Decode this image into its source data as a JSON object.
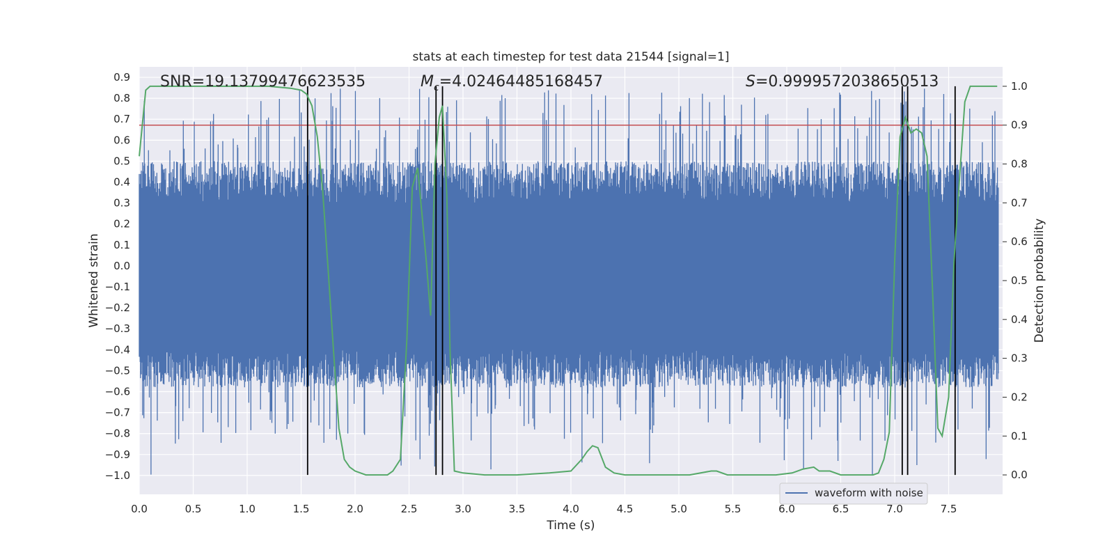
{
  "chart_data": {
    "type": "line",
    "title": "stats at each timestep for test data 21544 [signal=1]",
    "xlabel": "Time (s)",
    "ylabel_left": "Whitened strain",
    "ylabel_right": "Detection probability",
    "xlim": [
      0.0,
      8.0
    ],
    "ylim_left": [
      -1.09,
      0.95
    ],
    "ylim_right": [
      -0.05,
      1.05
    ],
    "x_ticks": [
      "0.0",
      "0.5",
      "1.0",
      "1.5",
      "2.0",
      "2.5",
      "3.0",
      "3.5",
      "4.0",
      "4.5",
      "5.0",
      "5.5",
      "6.0",
      "6.5",
      "7.0",
      "7.5"
    ],
    "y_left_ticks": [
      "0.9",
      "0.8",
      "0.7",
      "0.6",
      "0.5",
      "0.4",
      "0.3",
      "0.2",
      "0.1",
      "0.0",
      "−0.1",
      "−0.2",
      "−0.3",
      "−0.4",
      "−0.5",
      "−0.6",
      "−0.7",
      "−0.8",
      "−0.9",
      "−1.0"
    ],
    "y_right_ticks": [
      "1.0",
      "0.9",
      "0.8",
      "0.7",
      "0.6",
      "0.5",
      "0.4",
      "0.3",
      "0.2",
      "0.1",
      "0.0"
    ],
    "grid": true,
    "background": "#eaeaf2",
    "legend": {
      "position": "lower-right",
      "entries": [
        "waveform with noise"
      ]
    },
    "annotations": {
      "snr": "SNR=19.13799476623535",
      "mc_symbol": "M",
      "mc_sub": "c",
      "mc_value": "=4.02464485168457",
      "s_symbol": "S",
      "s_value": "=0.9999572038650513"
    },
    "threshold": {
      "value_right": 0.9,
      "color": "#c44e52"
    },
    "vlines": [
      1.56,
      2.75,
      2.81,
      7.07,
      7.12,
      7.56
    ],
    "waveform": {
      "name": "waveform with noise",
      "color": "#4c72b0",
      "typical_amplitude": 0.45,
      "spike_max": 0.85,
      "spike_min": -1.0,
      "n_samples": 2048
    },
    "probability_series": {
      "color": "#55a868",
      "x": [
        0.0,
        0.06,
        0.1,
        0.2,
        0.4,
        0.6,
        0.8,
        1.0,
        1.2,
        1.4,
        1.5,
        1.55,
        1.6,
        1.65,
        1.7,
        1.75,
        1.8,
        1.85,
        1.9,
        1.95,
        2.0,
        2.1,
        2.2,
        2.3,
        2.35,
        2.42,
        2.48,
        2.53,
        2.58,
        2.62,
        2.66,
        2.7,
        2.74,
        2.78,
        2.81,
        2.85,
        2.88,
        2.92,
        3.0,
        3.2,
        3.5,
        3.8,
        4.0,
        4.1,
        4.15,
        4.2,
        4.25,
        4.32,
        4.4,
        4.5,
        4.8,
        5.1,
        5.3,
        5.35,
        5.45,
        5.6,
        5.9,
        6.05,
        6.15,
        6.25,
        6.3,
        6.4,
        6.5,
        6.8,
        6.85,
        6.9,
        6.95,
        7.0,
        7.05,
        7.1,
        7.15,
        7.2,
        7.25,
        7.3,
        7.35,
        7.4,
        7.44,
        7.5,
        7.55,
        7.6,
        7.65,
        7.7,
        7.8,
        7.95
      ],
      "y": [
        0.82,
        0.99,
        1.0,
        1.0,
        1.0,
        1.0,
        1.0,
        1.0,
        1.0,
        0.995,
        0.99,
        0.98,
        0.95,
        0.87,
        0.73,
        0.53,
        0.32,
        0.12,
        0.04,
        0.02,
        0.01,
        0.0,
        0.0,
        0.0,
        0.01,
        0.04,
        0.35,
        0.74,
        0.79,
        0.67,
        0.55,
        0.41,
        0.8,
        0.92,
        0.95,
        0.72,
        0.32,
        0.01,
        0.005,
        0.0,
        0.0,
        0.005,
        0.01,
        0.04,
        0.06,
        0.075,
        0.07,
        0.02,
        0.005,
        0.0,
        0.0,
        0.0,
        0.01,
        0.01,
        0.0,
        0.0,
        0.0,
        0.005,
        0.015,
        0.02,
        0.01,
        0.01,
        0.0,
        0.0,
        0.005,
        0.04,
        0.11,
        0.55,
        0.87,
        0.92,
        0.88,
        0.89,
        0.88,
        0.82,
        0.48,
        0.12,
        0.1,
        0.2,
        0.55,
        0.76,
        0.96,
        1.0,
        1.0,
        1.0
      ]
    }
  }
}
